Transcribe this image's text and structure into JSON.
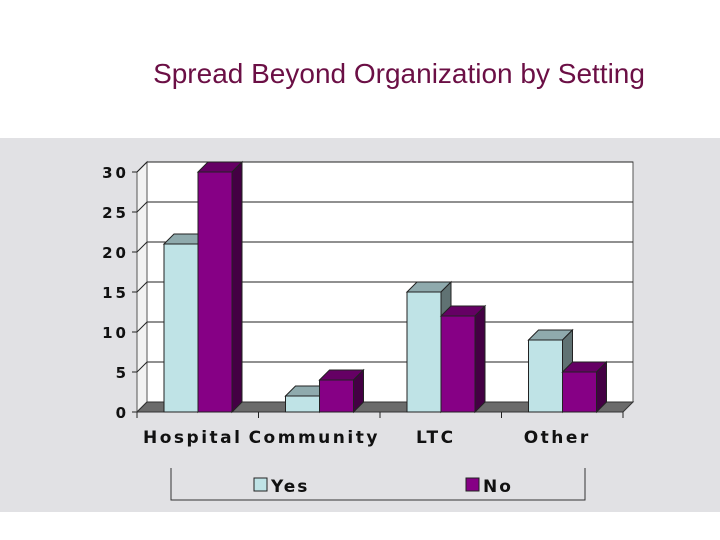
{
  "title": "Spread Beyond Organization by Setting",
  "colors": {
    "title": "#6b0f45",
    "panel": "#e1e1e4",
    "yes": "#bfe3e6",
    "no": "#860085"
  },
  "chart_data": {
    "type": "bar",
    "title": "Spread Beyond Organization by Setting",
    "xlabel": "",
    "ylabel": "",
    "categories": [
      "Hospital",
      "Community",
      "LTC",
      "Other"
    ],
    "series": [
      {
        "name": "Yes",
        "values": [
          21,
          2,
          15,
          9
        ],
        "color": "#bfe3e6"
      },
      {
        "name": "No",
        "values": [
          30,
          4,
          12,
          5
        ],
        "color": "#860085"
      }
    ],
    "ylim": [
      0,
      30
    ],
    "yticks": [
      "0",
      "5",
      "10",
      "15",
      "20",
      "25",
      "30"
    ],
    "grid": true,
    "legend": "bottom",
    "style": "3d"
  }
}
